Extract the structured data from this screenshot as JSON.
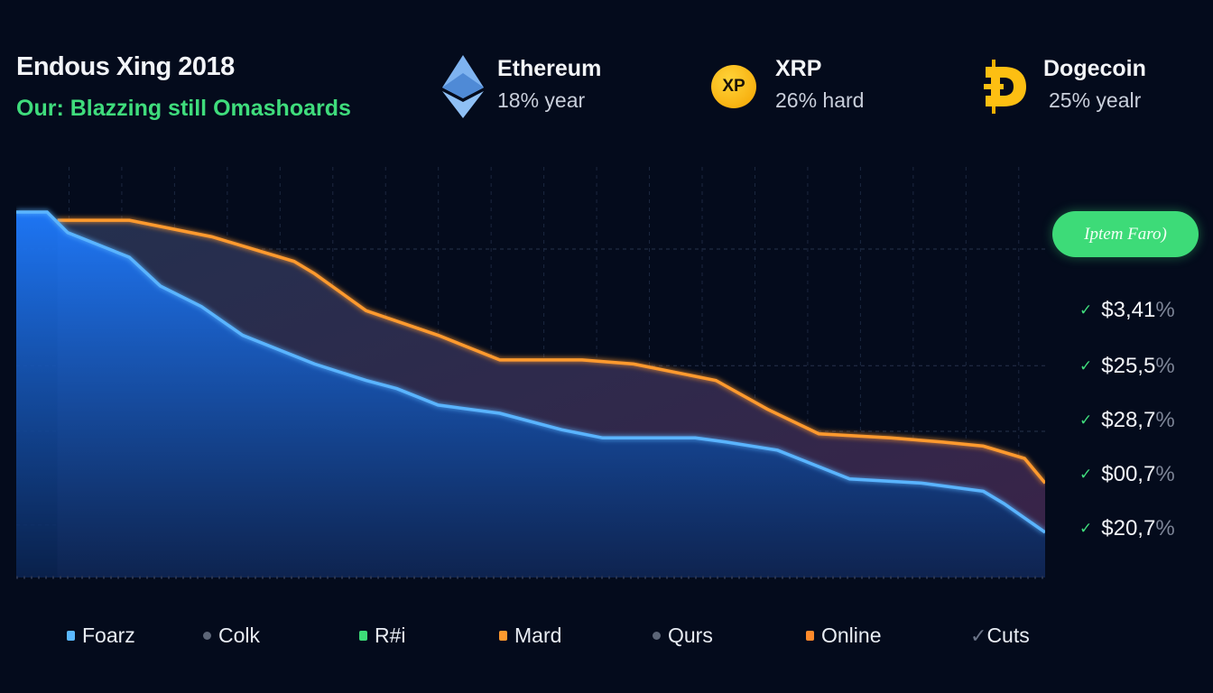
{
  "header": {
    "title": "Endous Xing 2018",
    "subtitle": "Our: Blazzing still Omashoards"
  },
  "coins": [
    {
      "name": "Ethereum",
      "sub": "18% year",
      "icon": "ethereum-icon"
    },
    {
      "name": "XRP",
      "sub": "26% hard",
      "icon": "xrp-icon",
      "badge": "XP"
    },
    {
      "name": "Dogecoin",
      "sub": "25% yealr",
      "icon": "dogecoin-icon"
    }
  ],
  "side": {
    "button": "Iptem Faro)",
    "values": [
      {
        "amount": "$3,41",
        "suffix": "%"
      },
      {
        "amount": "$25,5",
        "suffix": "%"
      },
      {
        "amount": "$28,7",
        "suffix": "%"
      },
      {
        "amount": "$00,7",
        "suffix": "%"
      },
      {
        "amount": "$20,7",
        "suffix": "%"
      }
    ]
  },
  "legend": [
    {
      "label": "Foarz",
      "marker": "square",
      "color": "#5ab8ff"
    },
    {
      "label": "Colk",
      "marker": "dot",
      "color": "#5c6577"
    },
    {
      "label": "R#i",
      "marker": "square",
      "color": "#3ddb78"
    },
    {
      "label": "Mard",
      "marker": "square",
      "color": "#ff9a2e"
    },
    {
      "label": "Qurs",
      "marker": "dot",
      "color": "#5c6577"
    },
    {
      "label": "Online",
      "marker": "square",
      "color": "#ff8a2a"
    },
    {
      "label": "Cuts",
      "marker": "check",
      "color": "#6b7488"
    }
  ],
  "chart_data": {
    "type": "area",
    "title": "",
    "xlabel": "",
    "ylabel": "",
    "grid": true,
    "xlim": [
      0,
      100
    ],
    "ylim": [
      0,
      100
    ],
    "series": [
      {
        "color": "#ff9a2e",
        "x": [
          4,
          11,
          19,
          27,
          29,
          34,
          41,
          47,
          55,
          60,
          68,
          73,
          78,
          85,
          90,
          94,
          98,
          100
        ],
        "values": [
          87,
          87,
          83,
          77,
          74,
          65,
          59,
          53,
          53,
          52,
          48,
          41,
          35,
          34,
          33,
          32,
          29,
          23
        ]
      },
      {
        "color": "#3a9bff",
        "x": [
          0,
          3,
          5,
          11,
          14,
          18,
          22,
          26,
          29,
          34,
          37,
          41,
          47,
          53,
          57,
          66,
          69,
          74,
          77,
          81,
          88,
          94,
          96,
          100
        ],
        "values": [
          89,
          89,
          84,
          78,
          71,
          66,
          59,
          55,
          52,
          48,
          46,
          42,
          40,
          36,
          34,
          34,
          33,
          31,
          28,
          24,
          23,
          21,
          18,
          11
        ]
      }
    ]
  }
}
